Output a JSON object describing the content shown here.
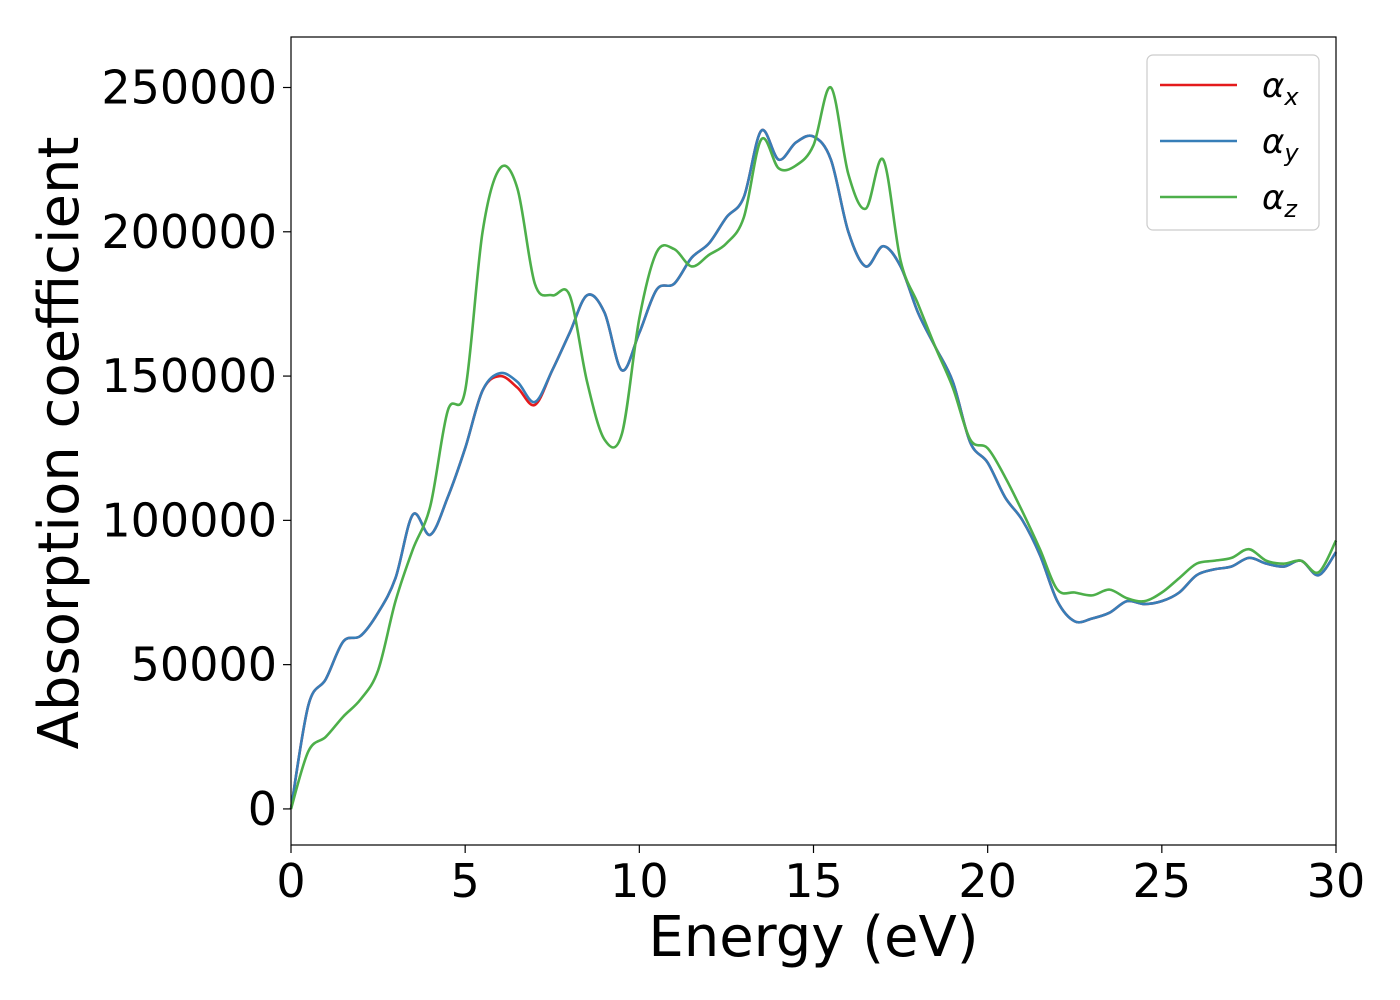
{
  "chart_data": {
    "type": "line",
    "xlabel": "Energy (eV)",
    "ylabel": "Absorption coefficient",
    "xlim": [
      0,
      30
    ],
    "ylim": [
      -12500,
      267500
    ],
    "xticks": [
      0,
      5,
      10,
      15,
      20,
      25,
      30
    ],
    "xtick_labels": [
      "0",
      "5",
      "10",
      "15",
      "20",
      "25",
      "30"
    ],
    "yticks": [
      0,
      50000,
      100000,
      150000,
      200000,
      250000
    ],
    "ytick_labels": [
      "0",
      "50000",
      "100000",
      "150000",
      "200000",
      "250000"
    ],
    "grid": false,
    "legend_position": "top-right",
    "x": [
      0,
      0.5,
      1,
      1.5,
      2,
      2.5,
      3,
      3.5,
      4,
      4.5,
      5,
      5.5,
      6,
      6.5,
      7,
      7.5,
      8,
      8.5,
      9,
      9.5,
      10,
      10.5,
      11,
      11.5,
      12,
      12.5,
      13,
      13.5,
      14,
      14.5,
      15,
      15.5,
      16,
      16.5,
      17,
      17.5,
      18,
      18.5,
      19,
      19.5,
      20,
      20.5,
      21,
      21.5,
      22,
      22.5,
      23,
      23.5,
      24,
      24.5,
      25,
      25.5,
      26,
      26.5,
      27,
      27.5,
      28,
      28.5,
      29,
      29.5,
      30
    ],
    "series": [
      {
        "name": "α",
        "subscript": "x",
        "color": "#e41a1c",
        "values": [
          0,
          36000,
          45000,
          58000,
          60000,
          68000,
          80000,
          102000,
          95000,
          108000,
          125000,
          145000,
          150000,
          146000,
          140000,
          152000,
          165000,
          178000,
          172000,
          152000,
          165000,
          180000,
          182000,
          191000,
          196000,
          205000,
          212000,
          235000,
          225000,
          231000,
          233000,
          225000,
          200000,
          188000,
          195000,
          188000,
          172000,
          160000,
          148000,
          127000,
          120000,
          108000,
          100000,
          88000,
          72000,
          65000,
          66000,
          68000,
          72000,
          71000,
          72000,
          75000,
          81000,
          83000,
          84000,
          87000,
          85000,
          84000,
          86000,
          81000,
          89000
        ]
      },
      {
        "name": "α",
        "subscript": "y",
        "color": "#377eb8",
        "values": [
          0,
          36000,
          45000,
          58000,
          60000,
          68000,
          80000,
          102000,
          95000,
          108000,
          125000,
          145000,
          151000,
          148000,
          141000,
          152000,
          165000,
          178000,
          172000,
          152000,
          165000,
          180000,
          182000,
          191000,
          196000,
          205000,
          212000,
          235000,
          225000,
          231000,
          233000,
          225000,
          200000,
          188000,
          195000,
          188000,
          172000,
          160000,
          148000,
          127000,
          120000,
          108000,
          100000,
          88000,
          72000,
          65000,
          66000,
          68000,
          72000,
          71000,
          72000,
          75000,
          81000,
          83000,
          84000,
          87000,
          85000,
          84000,
          86000,
          81000,
          89000
        ]
      },
      {
        "name": "α",
        "subscript": "z",
        "color": "#4daf4a",
        "values": [
          0,
          20000,
          25000,
          32000,
          38000,
          48000,
          72000,
          90000,
          105000,
          138000,
          145000,
          200000,
          222000,
          215000,
          182000,
          178000,
          178000,
          148000,
          128000,
          130000,
          170000,
          193000,
          194000,
          188000,
          192000,
          196000,
          205000,
          232000,
          222000,
          223000,
          230000,
          250000,
          220000,
          208000,
          225000,
          190000,
          175000,
          160000,
          146000,
          128000,
          125000,
          115000,
          103000,
          90000,
          76000,
          75000,
          74000,
          76000,
          73000,
          72000,
          75000,
          80000,
          85000,
          86000,
          87000,
          90000,
          86000,
          85000,
          86000,
          82000,
          93000
        ]
      }
    ]
  }
}
